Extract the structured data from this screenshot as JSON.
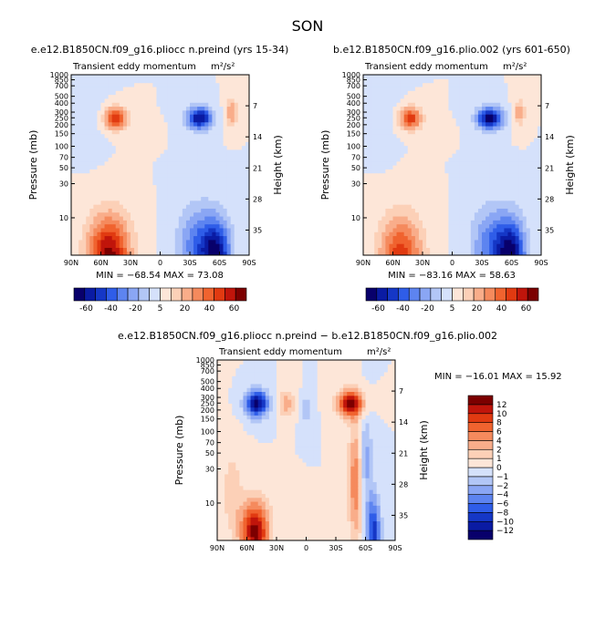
{
  "title": "SON",
  "colors": {
    "scale": [
      "#08006b",
      "#0a1ba3",
      "#1537c6",
      "#2f5de8",
      "#5d84f0",
      "#8aa6f4",
      "#b2c6f6",
      "#d5e1fb",
      "#fde6d8",
      "#fcd0b7",
      "#f9ad8a",
      "#f58a5d",
      "#f0632f",
      "#e13a11",
      "#c0150b",
      "#7c0000"
    ]
  },
  "chart_data": [
    {
      "id": "panel-1",
      "type": "heatmap",
      "title": "e.e12.B1850CN.f09_g16.pliocc n.preind (yrs 15-34)",
      "field_label": "Transient eddy momentum",
      "units_label": "m²/s²",
      "ylabel": "Pressure (mb)",
      "y2label": "Height (km)",
      "x_ticks": [
        "90N",
        "60N",
        "30N",
        "0",
        "30S",
        "60S",
        "90S"
      ],
      "x_tick_values": [
        90,
        60,
        30,
        0,
        -30,
        -60,
        -90
      ],
      "y_ticks": [
        "10",
        "30",
        "50",
        "70",
        "100",
        "150",
        "200",
        "250",
        "300",
        "400",
        "500",
        "700",
        "850",
        "1000"
      ],
      "y_tick_values": [
        10,
        30,
        50,
        70,
        100,
        150,
        200,
        250,
        300,
        400,
        500,
        700,
        850,
        1000
      ],
      "y2_ticks": [
        "35",
        "28",
        "21",
        "14",
        "7"
      ],
      "y2_tick_values": [
        35,
        28,
        21,
        14,
        7
      ],
      "ylim": [
        1000,
        3
      ],
      "stats": "MIN = −68.54    MAX = 73.08",
      "min": -68.54,
      "max": 73.08,
      "features": [
        {
          "lat": 52,
          "p": 3,
          "value": 68,
          "dlat": 15,
          "dlp": 0.9
        },
        {
          "lat": 45,
          "p": 250,
          "value": 55,
          "dlat": 8,
          "dlp": 0.25
        },
        {
          "lat": 5,
          "p": 150,
          "value": 6,
          "dlat": 4,
          "dlp": 0.2
        },
        {
          "lat": -40,
          "p": 250,
          "value": -65,
          "dlat": 9,
          "dlp": 0.25
        },
        {
          "lat": -38,
          "p": 4,
          "value": -35,
          "dlat": 14,
          "dlp": 0.9
        },
        {
          "lat": -57,
          "p": 3,
          "value": -60,
          "dlat": 10,
          "dlp": 0.8
        },
        {
          "lat": -72,
          "p": 300,
          "value": 28,
          "dlat": 4,
          "dlp": 0.3
        },
        {
          "lat": 70,
          "p": 500,
          "value": -6,
          "dlat": 10,
          "dlp": 1.0
        }
      ]
    },
    {
      "id": "panel-2",
      "type": "heatmap",
      "title": "b.e12.B1850CN.f09_g16.plio.002 (yrs 601-650)",
      "field_label": "Transient eddy momentum",
      "units_label": "m²/s²",
      "ylabel": "Pressure (mb)",
      "y2label": "Height (km)",
      "x_ticks": [
        "90N",
        "60N",
        "30N",
        "0",
        "30S",
        "60S",
        "90S"
      ],
      "x_tick_values": [
        90,
        60,
        30,
        0,
        -30,
        -60,
        -90
      ],
      "y_ticks": [
        "10",
        "30",
        "50",
        "70",
        "100",
        "150",
        "200",
        "250",
        "300",
        "400",
        "500",
        "700",
        "850",
        "1000"
      ],
      "y_tick_values": [
        10,
        30,
        50,
        70,
        100,
        150,
        200,
        250,
        300,
        400,
        500,
        700,
        850,
        1000
      ],
      "y2_ticks": [
        "35",
        "28",
        "21",
        "14",
        "7"
      ],
      "y2_tick_values": [
        35,
        28,
        21,
        14,
        7
      ],
      "ylim": [
        1000,
        3
      ],
      "stats": "MIN = −83.16    MAX = 58.63",
      "min": -83.16,
      "max": 58.63,
      "features": [
        {
          "lat": 52,
          "p": 3,
          "value": 58,
          "dlat": 15,
          "dlp": 0.9
        },
        {
          "lat": 42,
          "p": 250,
          "value": 58,
          "dlat": 8,
          "dlp": 0.25
        },
        {
          "lat": 5,
          "p": 150,
          "value": 6,
          "dlat": 4,
          "dlp": 0.2
        },
        {
          "lat": -38,
          "p": 250,
          "value": -80,
          "dlat": 9,
          "dlp": 0.25
        },
        {
          "lat": -40,
          "p": 4,
          "value": -40,
          "dlat": 14,
          "dlp": 0.9
        },
        {
          "lat": -60,
          "p": 3,
          "value": -70,
          "dlat": 10,
          "dlp": 0.8
        },
        {
          "lat": -68,
          "p": 300,
          "value": 28,
          "dlat": 4,
          "dlp": 0.3
        },
        {
          "lat": 70,
          "p": 500,
          "value": -6,
          "dlat": 10,
          "dlp": 1.0
        }
      ]
    },
    {
      "id": "panel-3",
      "type": "heatmap",
      "title": "e.e12.B1850CN.f09_g16.pliocc n.preind − b.e12.B1850CN.f09_g16.plio.002",
      "field_label": "Transient eddy momentum",
      "units_label": "m²/s²",
      "ylabel": "Pressure (mb)",
      "y2label": "Height (km)",
      "x_ticks": [
        "90N",
        "60N",
        "30N",
        "0",
        "30S",
        "60S",
        "90S"
      ],
      "x_tick_values": [
        90,
        60,
        30,
        0,
        -30,
        -60,
        -90
      ],
      "y_ticks": [
        "10",
        "30",
        "50",
        "70",
        "100",
        "150",
        "200",
        "250",
        "300",
        "400",
        "500",
        "700",
        "850",
        "1000"
      ],
      "y_tick_values": [
        10,
        30,
        50,
        70,
        100,
        150,
        200,
        250,
        300,
        400,
        500,
        700,
        850,
        1000
      ],
      "y2_ticks": [
        "35",
        "28",
        "21",
        "14",
        "7"
      ],
      "y2_tick_values": [
        35,
        28,
        21,
        14,
        7
      ],
      "ylim": [
        1000,
        3
      ],
      "stats": "MIN = −16.01    MAX =   15.92",
      "min": -16.01,
      "max": 15.92,
      "features": [
        {
          "lat": 52,
          "p": 4,
          "value": 15,
          "dlat": 10,
          "dlp": 0.7
        },
        {
          "lat": 50,
          "p": 250,
          "value": -15,
          "dlat": 8,
          "dlp": 0.3
        },
        {
          "lat": -45,
          "p": 250,
          "value": 15,
          "dlat": 9,
          "dlp": 0.3
        },
        {
          "lat": -50,
          "p": 20,
          "value": 8,
          "dlat": 5,
          "dlp": 1.3
        },
        {
          "lat": -68,
          "p": 4,
          "value": -11,
          "dlat": 5,
          "dlp": 0.8
        },
        {
          "lat": -60,
          "p": 40,
          "value": -5,
          "dlat": 5,
          "dlp": 1.0
        },
        {
          "lat": 20,
          "p": 250,
          "value": 5,
          "dlat": 6,
          "dlp": 0.3
        },
        {
          "lat": 0,
          "p": 200,
          "value": -4,
          "dlat": 4,
          "dlp": 0.3
        },
        {
          "lat": 75,
          "p": 15,
          "value": 3,
          "dlat": 8,
          "dlp": 1.0
        }
      ]
    }
  ],
  "colorbars": {
    "horizontal_1": {
      "levels": [
        -70,
        -60,
        -50,
        -40,
        -30,
        -20,
        -10,
        -5,
        0,
        5,
        10,
        20,
        30,
        40,
        50,
        60,
        70
      ],
      "labels": [
        "-60",
        "-40",
        "-20",
        "5",
        "20",
        "40",
        "60"
      ]
    },
    "horizontal_2": {
      "levels": [
        -70,
        -60,
        -50,
        -40,
        -30,
        -20,
        -10,
        -5,
        0,
        5,
        10,
        20,
        30,
        40,
        50,
        60,
        70
      ],
      "labels": [
        "-60",
        "-40",
        "-20",
        "5",
        "20",
        "40",
        "60"
      ]
    },
    "vertical": {
      "labels": [
        "12",
        "10",
        "8",
        "6",
        "4",
        "2",
        "1",
        "0",
        "−1",
        "−2",
        "−4",
        "−6",
        "−8",
        "−10",
        "−12"
      ]
    }
  }
}
